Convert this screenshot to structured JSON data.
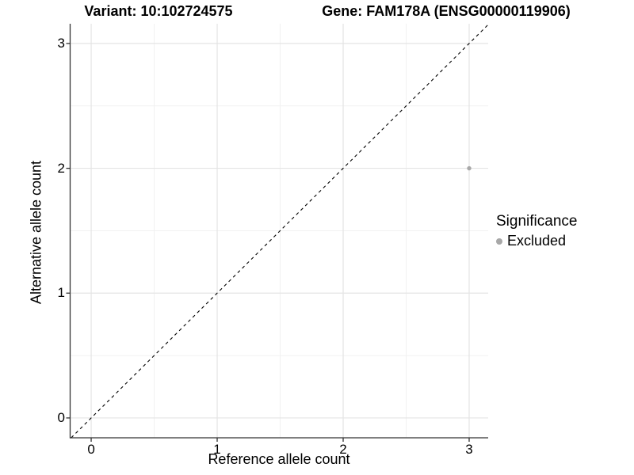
{
  "titles": {
    "variant": "Variant: 10:102724575",
    "gene": "Gene: FAM178A (ENSG00000119906)"
  },
  "legend": {
    "title": "Significance",
    "position": "right",
    "items": [
      {
        "label": "Excluded",
        "color": "#a8a8a8",
        "marker": "dot"
      }
    ]
  },
  "chart_data": {
    "type": "scatter",
    "title_left": "Variant: 10:102724575",
    "title_right": "Gene: FAM178A (ENSG00000119906)",
    "xlabel": "Reference allele count",
    "ylabel": "Alternative allele count",
    "xlim": [
      -0.167,
      3.151
    ],
    "ylim": [
      -0.159,
      3.158
    ],
    "x_ticks": [
      0,
      1,
      2,
      3
    ],
    "y_ticks": [
      0,
      1,
      2,
      3
    ],
    "x_minor_ticks": [
      0.5,
      1.5,
      2.5
    ],
    "y_minor_ticks": [
      0.5,
      1.5,
      2.5
    ],
    "grid": true,
    "legend_position": "right",
    "series": [
      {
        "name": "Excluded",
        "color": "#a8a8a8",
        "points": [
          {
            "x": 3,
            "y": 2
          }
        ]
      }
    ],
    "reference_line": {
      "type": "identity",
      "slope": 1,
      "intercept": 0,
      "style": "dashed",
      "color": "#000000"
    },
    "colors": {
      "grid_major": "#e4e4e4",
      "grid_minor": "#f1f1f1",
      "axis_line": "#333333",
      "text": "#000000"
    }
  }
}
